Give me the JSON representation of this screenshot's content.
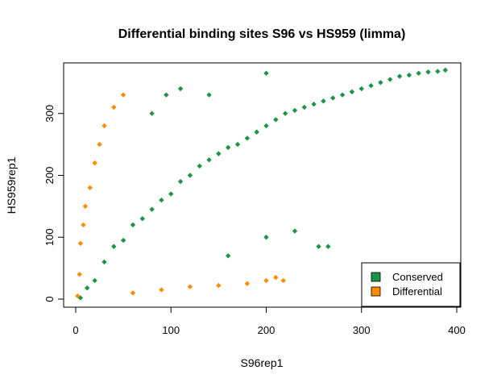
{
  "chart_data": {
    "type": "scatter",
    "title": "Differential binding sites S96 vs HS959 (limma)",
    "xlabel": "S96rep1",
    "ylabel": "HS959rep1",
    "xlim": [
      0,
      400
    ],
    "ylim": [
      0,
      370
    ],
    "xticks": [
      "0",
      "100",
      "200",
      "300",
      "400"
    ],
    "yticks": [
      "0",
      "100",
      "200",
      "300"
    ],
    "grid": false,
    "legend_position": "bottom-right",
    "series": [
      {
        "name": "Conserved",
        "color": "#1B9444",
        "points": [
          [
            5,
            2
          ],
          [
            12,
            18
          ],
          [
            20,
            30
          ],
          [
            30,
            60
          ],
          [
            40,
            85
          ],
          [
            50,
            95
          ],
          [
            60,
            120
          ],
          [
            70,
            130
          ],
          [
            80,
            145
          ],
          [
            90,
            160
          ],
          [
            100,
            170
          ],
          [
            110,
            190
          ],
          [
            120,
            200
          ],
          [
            130,
            215
          ],
          [
            140,
            225
          ],
          [
            150,
            235
          ],
          [
            160,
            245
          ],
          [
            170,
            250
          ],
          [
            180,
            260
          ],
          [
            190,
            270
          ],
          [
            200,
            280
          ],
          [
            210,
            290
          ],
          [
            220,
            300
          ],
          [
            230,
            305
          ],
          [
            240,
            310
          ],
          [
            250,
            315
          ],
          [
            260,
            320
          ],
          [
            270,
            325
          ],
          [
            280,
            330
          ],
          [
            290,
            335
          ],
          [
            300,
            340
          ],
          [
            310,
            345
          ],
          [
            320,
            350
          ],
          [
            330,
            355
          ],
          [
            340,
            360
          ],
          [
            350,
            362
          ],
          [
            360,
            365
          ],
          [
            370,
            367
          ],
          [
            380,
            368
          ],
          [
            388,
            370
          ],
          [
            80,
            300
          ],
          [
            95,
            330
          ],
          [
            110,
            340
          ],
          [
            140,
            330
          ],
          [
            200,
            365
          ],
          [
            160,
            70
          ],
          [
            200,
            100
          ],
          [
            230,
            110
          ],
          [
            255,
            85
          ],
          [
            265,
            85
          ]
        ]
      },
      {
        "name": "Differential",
        "color": "#FF8C00",
        "points": [
          [
            2,
            5
          ],
          [
            4,
            40
          ],
          [
            5,
            90
          ],
          [
            8,
            120
          ],
          [
            10,
            150
          ],
          [
            15,
            180
          ],
          [
            20,
            220
          ],
          [
            25,
            250
          ],
          [
            30,
            280
          ],
          [
            40,
            310
          ],
          [
            50,
            330
          ],
          [
            60,
            10
          ],
          [
            90,
            15
          ],
          [
            120,
            20
          ],
          [
            150,
            22
          ],
          [
            180,
            25
          ],
          [
            200,
            30
          ],
          [
            210,
            35
          ],
          [
            218,
            30
          ]
        ]
      }
    ]
  }
}
